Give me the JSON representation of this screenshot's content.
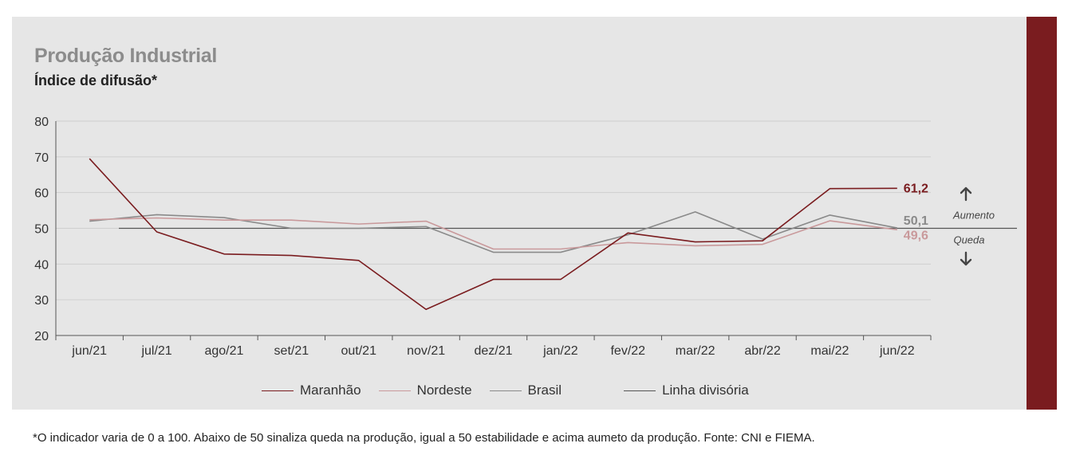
{
  "header": {
    "title": "Produção Industrial",
    "subtitle": "Índice de difusão*"
  },
  "footnote": "*O indicador varia de 0 a 100. Abaixo de 50 sinaliza queda na produção, igual a 50 estabilidade e acima aumeto da produção. Fonte: CNI e FIEMA.",
  "annotations": {
    "up": "Aumento",
    "down": "Queda"
  },
  "colors": {
    "maranhao": "#7a1c1f",
    "nordeste": "#c9999b",
    "brasil": "#8a8a8a",
    "divisoria": "#555555",
    "side_bar": "#7a1c1f"
  },
  "chart_data": {
    "type": "line",
    "categories": [
      "jun/21",
      "jul/21",
      "ago/21",
      "set/21",
      "out/21",
      "nov/21",
      "dez/21",
      "jan/22",
      "fev/22",
      "mar/22",
      "abr/22",
      "mai/22",
      "jun/22"
    ],
    "ylim": [
      20,
      80
    ],
    "yticks": [
      20,
      30,
      40,
      50,
      60,
      70,
      80
    ],
    "grid": true,
    "legend_position": "bottom",
    "series": [
      {
        "name": "Maranhão",
        "color_key": "maranhao",
        "values": [
          69.5,
          49.0,
          42.8,
          42.4,
          41.0,
          27.3,
          35.7,
          35.7,
          48.7,
          46.2,
          46.5,
          61.1,
          61.2
        ],
        "end_label": "61,2"
      },
      {
        "name": "Nordeste",
        "color_key": "nordeste",
        "values": [
          52.4,
          52.9,
          52.3,
          52.3,
          51.2,
          52.0,
          44.2,
          44.2,
          46.0,
          45.1,
          45.5,
          52.1,
          49.6
        ],
        "end_label": "49,6"
      },
      {
        "name": "Brasil",
        "color_key": "brasil",
        "values": [
          52.0,
          53.8,
          53.0,
          50.0,
          50.0,
          50.5,
          43.3,
          43.3,
          48.2,
          54.6,
          47.0,
          53.7,
          50.1
        ],
        "end_label": "50,1"
      }
    ],
    "reference_line": {
      "name": "Linha divisória",
      "value": 50
    }
  }
}
